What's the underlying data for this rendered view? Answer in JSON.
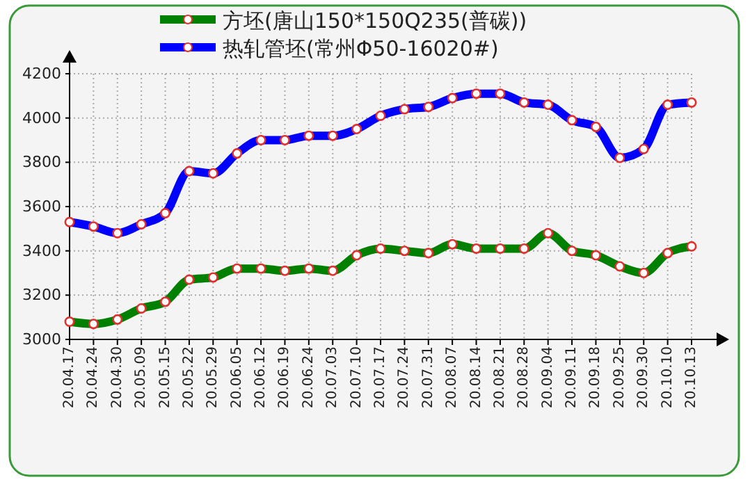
{
  "chart_data": {
    "type": "line",
    "categories": [
      "20.04.17",
      "20.04.24",
      "20.04.30",
      "20.05.09",
      "20.05.15",
      "20.05.22",
      "20.05.29",
      "20.06.05",
      "20.06.12",
      "20.06.19",
      "20.06.24",
      "20.07.03",
      "20.07.10",
      "20.07.17",
      "20.07.24",
      "20.07.31",
      "20.08.07",
      "20.08.14",
      "20.08.21",
      "20.08.28",
      "20.09.04",
      "20.09.11",
      "20.09.18",
      "20.09.25",
      "20.09.30",
      "20.10.10",
      "20.10.13"
    ],
    "series": [
      {
        "name": "方坯(唐山150*150Q235(普碳))",
        "color": "#008000",
        "values": [
          3080,
          3070,
          3090,
          3140,
          3170,
          3270,
          3280,
          3320,
          3320,
          3310,
          3320,
          3310,
          3380,
          3410,
          3400,
          3390,
          3430,
          3410,
          3410,
          3410,
          3480,
          3400,
          3380,
          3330,
          3300,
          3390,
          3420
        ]
      },
      {
        "name": "热轧管坯(常州Φ50-16020#)",
        "color": "#0000ff",
        "values": [
          3530,
          3510,
          3480,
          3520,
          3570,
          3760,
          3750,
          3840,
          3900,
          3900,
          3920,
          3920,
          3950,
          4010,
          4040,
          4050,
          4090,
          4110,
          4110,
          4070,
          4060,
          3990,
          3960,
          3820,
          3860,
          4060,
          4070
        ]
      }
    ],
    "ylim": [
      3000,
      4200
    ],
    "yticks": [
      3000,
      3200,
      3400,
      3600,
      3800,
      4000,
      4200
    ],
    "grid": true,
    "legend": "top",
    "marker": "circle",
    "line_style": "solid"
  }
}
